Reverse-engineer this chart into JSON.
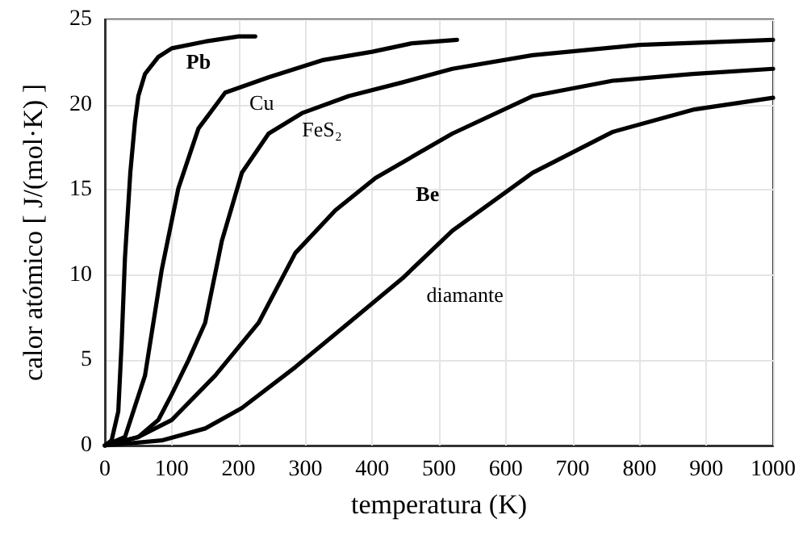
{
  "chart_data": {
    "type": "line",
    "xlabel": "temperatura (K)",
    "ylabel": "calor atómico [ J/(mol·K) ]",
    "xlim": [
      0,
      1000
    ],
    "xticks": [
      0,
      100,
      200,
      300,
      400,
      500,
      600,
      700,
      800,
      900,
      1000
    ],
    "ylim": [
      0,
      25
    ],
    "yticks": [
      0,
      5,
      10,
      15,
      20,
      25
    ],
    "grid": true,
    "legend": false,
    "marker": "none",
    "line_style": "solid",
    "series": [
      {
        "name": "Pb",
        "color": "#000000",
        "x": [
          0,
          10,
          20,
          25,
          30,
          38,
          45,
          50,
          60,
          80,
          100,
          150,
          200,
          225
        ],
        "values": [
          0,
          0.3,
          2,
          6,
          11,
          16,
          19,
          20.5,
          21.8,
          22.8,
          23.3,
          23.7,
          24,
          24
        ]
      },
      {
        "name": "Cu",
        "color": "#000000",
        "x": [
          0,
          30,
          60,
          85,
          110,
          140,
          180,
          245,
          325,
          400,
          460,
          527
        ],
        "values": [
          0,
          0.5,
          4.1,
          10.3,
          15.1,
          18.6,
          20.7,
          21.6,
          22.6,
          23.1,
          23.6,
          23.8
        ]
      },
      {
        "name": "FeS₂",
        "color": "#000000",
        "x": [
          0,
          50,
          80,
          100,
          125,
          150,
          175,
          205,
          245,
          295,
          365,
          445,
          520,
          640,
          800,
          1000
        ],
        "values": [
          0,
          0.5,
          1.5,
          3,
          5,
          7.2,
          12,
          16,
          18.3,
          19.5,
          20.5,
          21.3,
          22.1,
          22.9,
          23.5,
          23.8
        ]
      },
      {
        "name": "Be",
        "color": "#000000",
        "x": [
          0,
          50,
          100,
          165,
          230,
          285,
          345,
          405,
          520,
          640,
          760,
          880,
          1000
        ],
        "values": [
          0,
          0.5,
          1.5,
          4.1,
          7.2,
          11.3,
          13.8,
          15.7,
          18.3,
          20.5,
          21.4,
          21.8,
          22.1
        ]
      },
      {
        "name": "diamante",
        "color": "#000000",
        "x": [
          0,
          85,
          150,
          205,
          285,
          365,
          445,
          520,
          640,
          760,
          880,
          1000
        ],
        "values": [
          0,
          0.3,
          1,
          2.2,
          4.6,
          7.2,
          9.8,
          12.6,
          16,
          18.4,
          19.7,
          20.4
        ]
      }
    ]
  }
}
